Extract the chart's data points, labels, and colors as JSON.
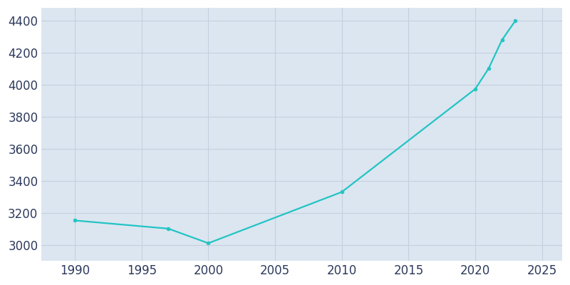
{
  "years": [
    1990,
    1997,
    2000,
    2010,
    2020,
    2021,
    2022,
    2023
  ],
  "population": [
    3152,
    3101,
    3010,
    3330,
    3974,
    4102,
    4280,
    4400
  ],
  "line_color": "#22c4c4",
  "marker_color": "#22c4c4",
  "plot_background_color": "#dce6f0",
  "figure_background_color": "#ffffff",
  "grid_color": "#c5d0e0",
  "tick_label_color": "#2d3a5c",
  "xlim": [
    1987.5,
    2026.5
  ],
  "ylim": [
    2900,
    4480
  ],
  "xticks": [
    1990,
    1995,
    2000,
    2005,
    2010,
    2015,
    2020,
    2025
  ],
  "yticks": [
    3000,
    3200,
    3400,
    3600,
    3800,
    4000,
    4200,
    4400
  ],
  "linewidth": 1.6,
  "markersize": 3.5,
  "tick_labelsize": 12
}
